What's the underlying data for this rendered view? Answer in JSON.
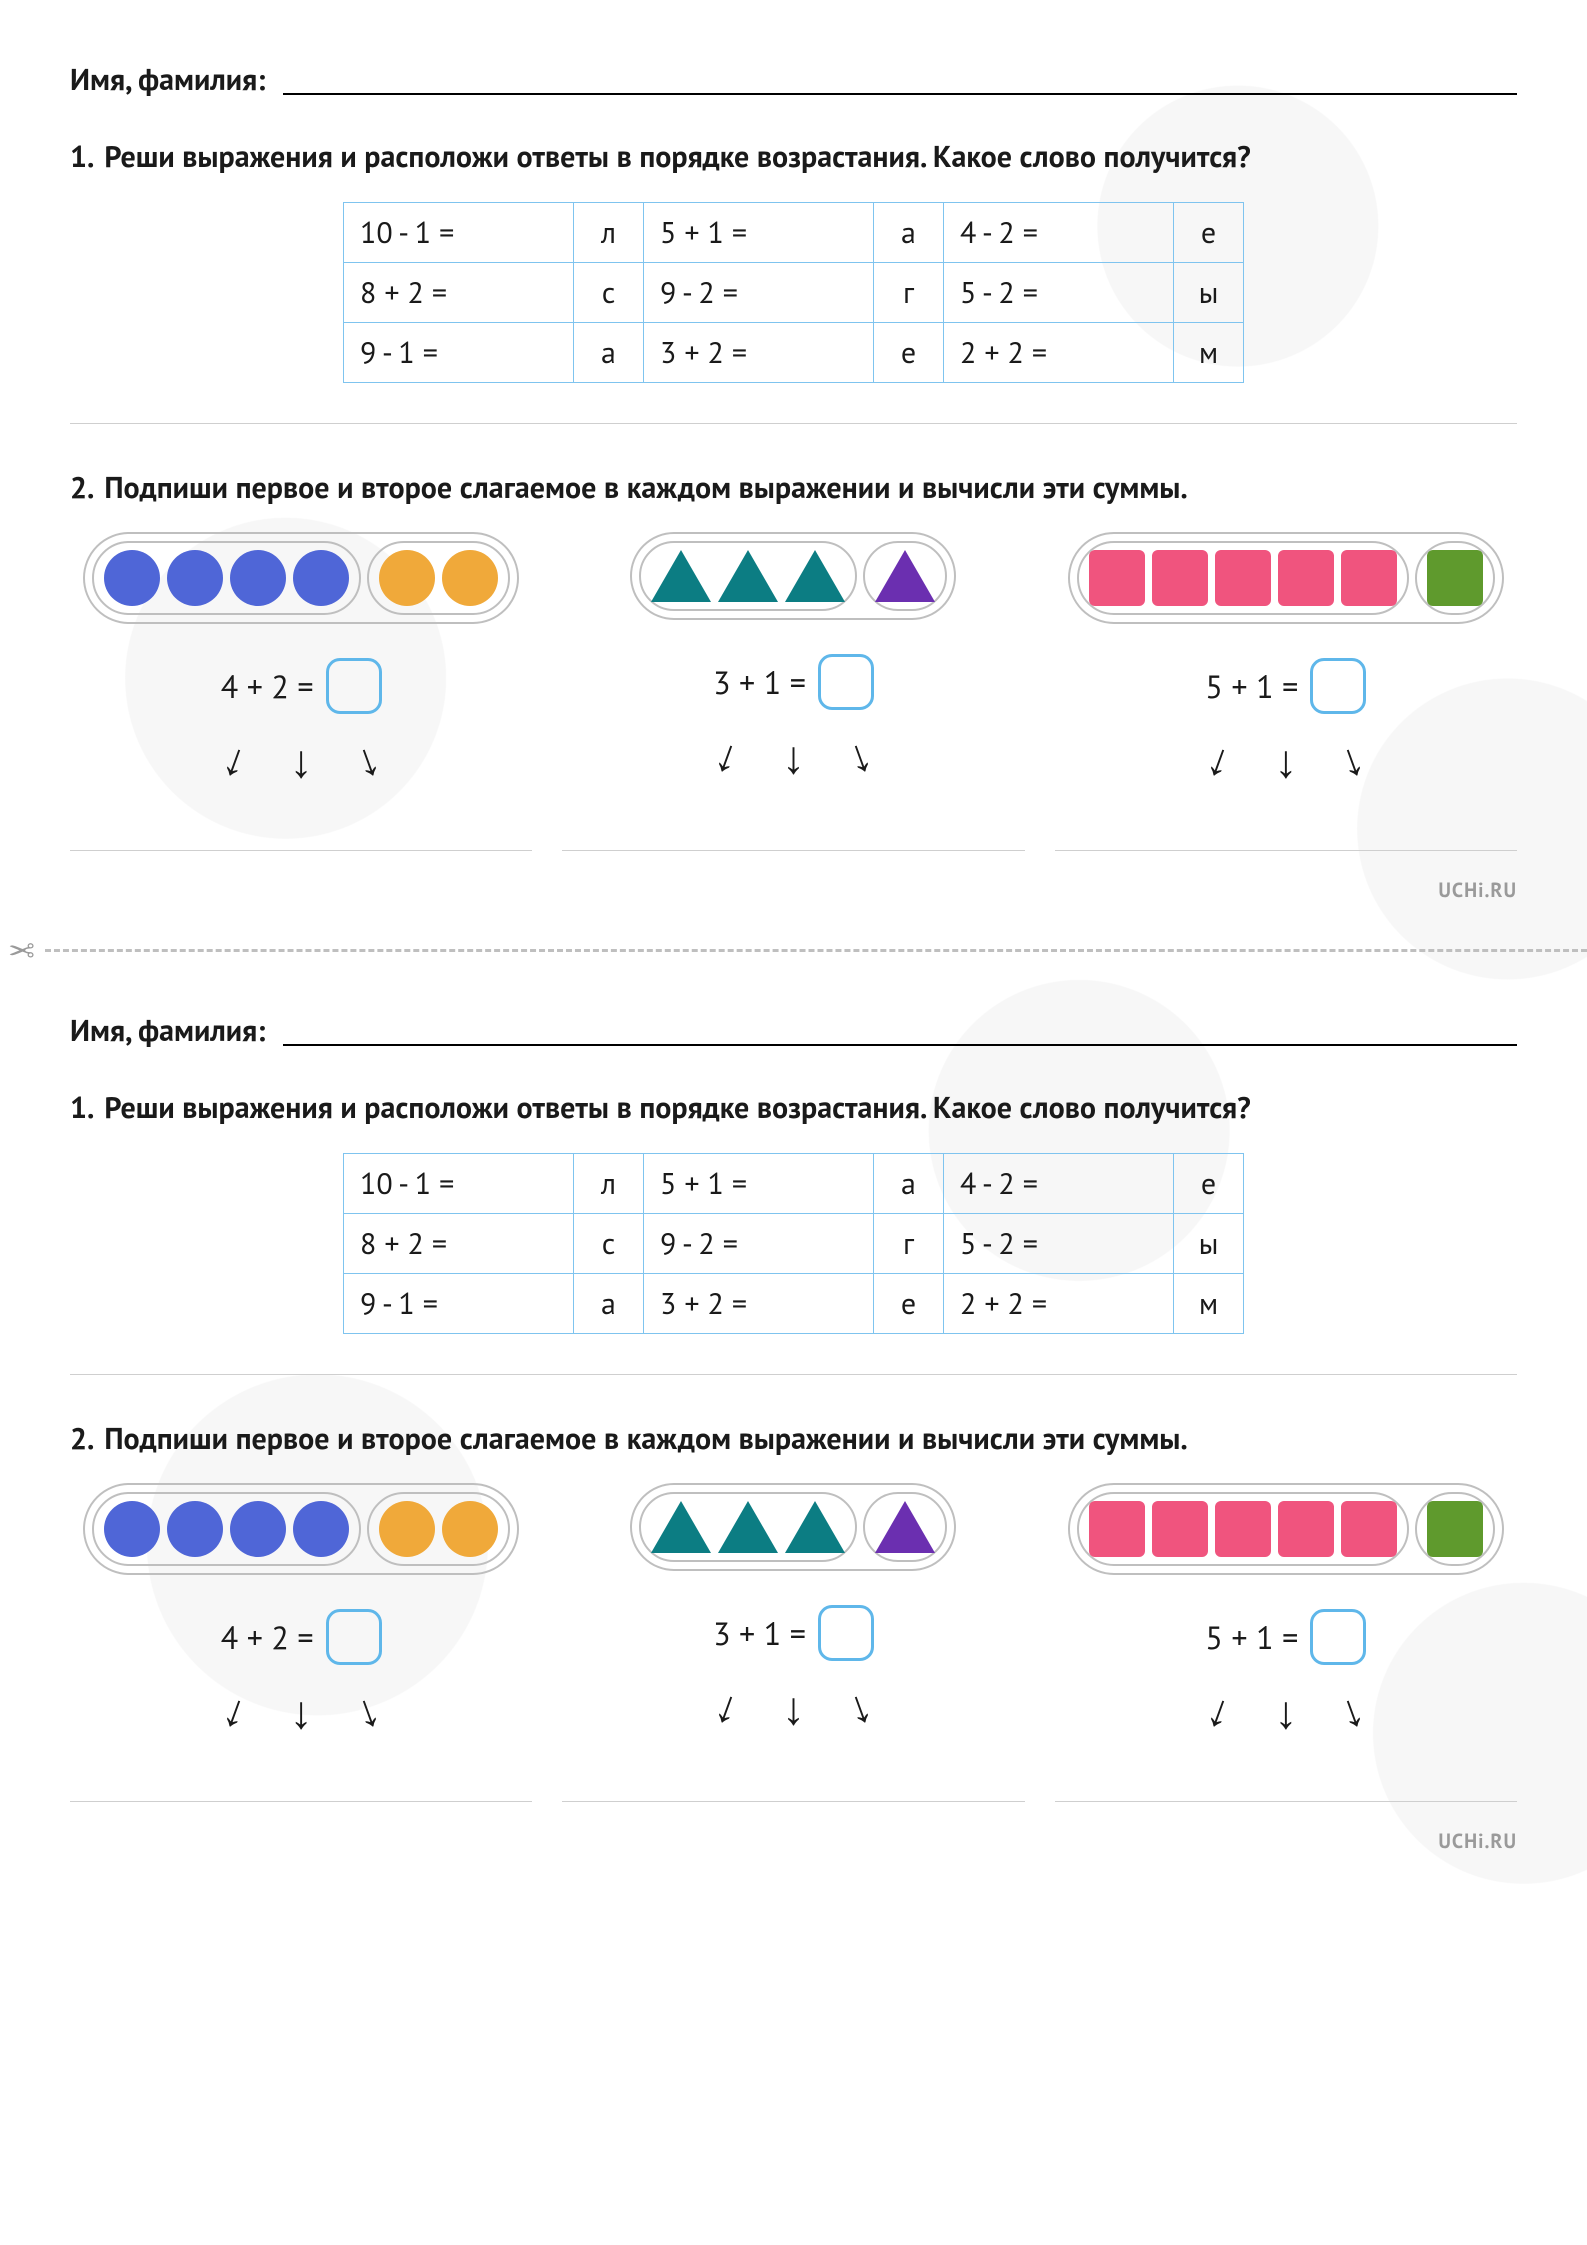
{
  "colors": {
    "table_border": "#7fc4ef",
    "grey_border": "#bfbfbf",
    "divider": "#cfcfcf",
    "answer_box_border": "#5fb7ea",
    "text": "#1a1a1a",
    "brand_grey": "#9a9a9a",
    "circle_blue": "#4f66d7",
    "circle_orange": "#f0a93a",
    "triangle_teal": "#0c7d83",
    "triangle_purple": "#6b2fb0",
    "square_pink": "#f0547e",
    "square_green": "#5f9a2d"
  },
  "name_label": "Имя, фамилия:",
  "task1": {
    "number": "1.",
    "text": "Реши выражения и расположи ответы в порядке возрастания. Какое слово получится?",
    "rows": [
      [
        {
          "expr": "10 - 1 =",
          "letter": "л"
        },
        {
          "expr": "5 + 1 =",
          "letter": "а"
        },
        {
          "expr": "4 - 2 =",
          "letter": "е"
        }
      ],
      [
        {
          "expr": "8 + 2 =",
          "letter": "с"
        },
        {
          "expr": "9 - 2 =",
          "letter": "г"
        },
        {
          "expr": "5 - 2 =",
          "letter": "ы"
        }
      ],
      [
        {
          "expr": "9 - 1 =",
          "letter": "а"
        },
        {
          "expr": "3 + 2 =",
          "letter": "е"
        },
        {
          "expr": "2 + 2 =",
          "letter": "м"
        }
      ]
    ]
  },
  "task2": {
    "number": "2.",
    "text": "Подпиши первое и второе слагаемое в каждом выражении и вычисли эти суммы.",
    "blocks": [
      {
        "shape": "circle",
        "group1": {
          "count": 4,
          "color": "#4f66d7"
        },
        "group2": {
          "count": 2,
          "color": "#f0a93a"
        },
        "expression": "4 + 2 ="
      },
      {
        "shape": "triangle",
        "group1": {
          "count": 3,
          "color": "#0c7d83"
        },
        "group2": {
          "count": 1,
          "color": "#6b2fb0"
        },
        "expression": "3 + 1 ="
      },
      {
        "shape": "square",
        "group1": {
          "count": 5,
          "color": "#f0547e"
        },
        "group2": {
          "count": 1,
          "color": "#5f9a2d"
        },
        "expression": "5 + 1 ="
      }
    ]
  },
  "brand": "UCHi.RU",
  "arrow_glyph": "↓"
}
